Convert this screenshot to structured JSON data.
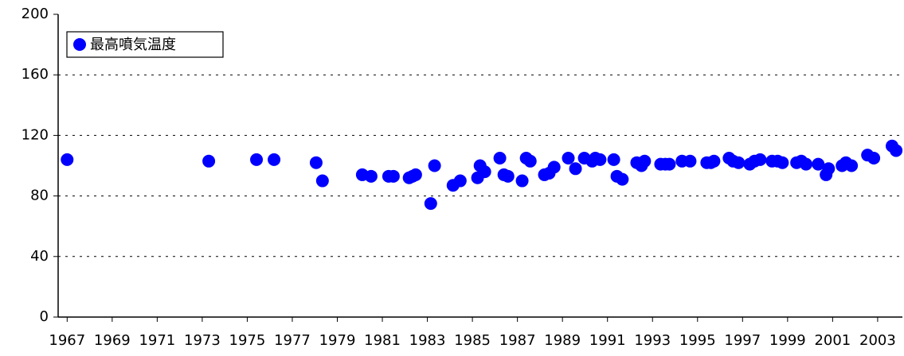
{
  "chart_data": {
    "type": "scatter",
    "series": [
      {
        "name": "最高噴気温度",
        "color": "#0000ff",
        "x": [
          1967.0,
          1973.29,
          1975.41,
          1976.19,
          1978.06,
          1978.34,
          1980.11,
          1980.5,
          1981.28,
          1981.49,
          1982.19,
          1982.34,
          1982.48,
          1983.32,
          1983.15,
          1984.14,
          1984.46,
          1985.23,
          1985.34,
          1985.55,
          1986.22,
          1986.4,
          1986.58,
          1987.21,
          1987.39,
          1987.57,
          1988.2,
          1988.41,
          1988.63,
          1989.26,
          1989.58,
          1989.97,
          1990.32,
          1990.46,
          1990.67,
          1991.28,
          1991.42,
          1991.66,
          1992.3,
          1992.51,
          1992.65,
          1993.36,
          1993.57,
          1993.75,
          1994.31,
          1994.67,
          1995.41,
          1995.59,
          1995.73,
          1996.4,
          1996.58,
          1996.82,
          1997.32,
          1997.53,
          1997.78,
          1998.31,
          1998.56,
          1998.77,
          1999.4,
          1999.61,
          1999.82,
          2000.36,
          2000.71,
          2000.82,
          2001.42,
          2001.59,
          2001.84,
          2002.55,
          2002.83,
          2003.64,
          2003.82
        ],
        "values": [
          104,
          103,
          104,
          104,
          102,
          90,
          94,
          93,
          93,
          93,
          92,
          93,
          94,
          100,
          75,
          87,
          90,
          92,
          100,
          96,
          105,
          94,
          93,
          90,
          105,
          103,
          94,
          95,
          99,
          105,
          98,
          105,
          103,
          105,
          104,
          104,
          93,
          91,
          102,
          100,
          103,
          101,
          101,
          101,
          103,
          103,
          102,
          102,
          103,
          105,
          103,
          102,
          101,
          103,
          104,
          103,
          103,
          102,
          102,
          103,
          101,
          101,
          94,
          98,
          100,
          102,
          100,
          107,
          105,
          113,
          110
        ]
      }
    ],
    "xlim": [
      1966.6,
      2004.1
    ],
    "xticks": [
      1967,
      1969,
      1971,
      1973,
      1975,
      1977,
      1979,
      1981,
      1983,
      1985,
      1987,
      1989,
      1991,
      1993,
      1995,
      1997,
      1999,
      2001,
      2003
    ],
    "ylim": [
      0,
      200
    ],
    "yticks": [
      0,
      40,
      80,
      120,
      160,
      200
    ],
    "grid": true,
    "legend": "upper left"
  }
}
